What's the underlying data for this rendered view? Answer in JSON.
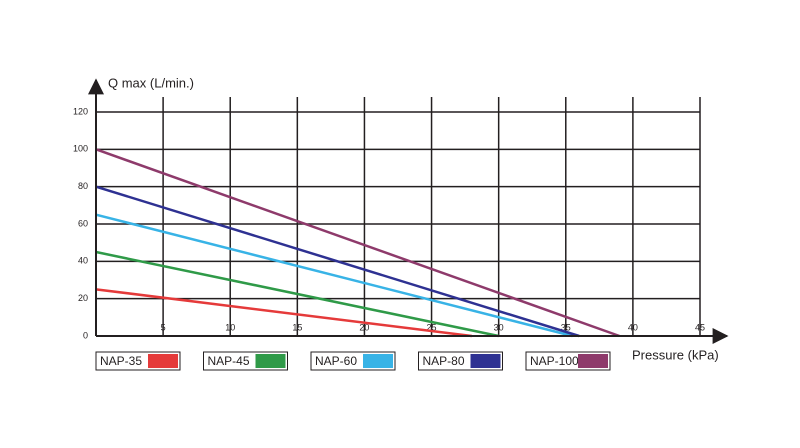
{
  "chart_data": {
    "type": "line",
    "x_label": "Pressure (kPa)",
    "y_label": "Q max (L/min.)",
    "series": [
      {
        "name": "NAP-35",
        "color": "#e53a3a",
        "x": [
          0,
          28
        ],
        "values": [
          25,
          0
        ]
      },
      {
        "name": "NAP-45",
        "color": "#2f9a48",
        "x": [
          0,
          30
        ],
        "values": [
          45,
          0
        ]
      },
      {
        "name": "NAP-60",
        "color": "#38b3e6",
        "x": [
          0,
          35.5
        ],
        "values": [
          65,
          0
        ]
      },
      {
        "name": "NAP-80",
        "color": "#2e3192",
        "x": [
          0,
          36
        ],
        "values": [
          80,
          0
        ]
      },
      {
        "name": "NAP-100",
        "color": "#8e3a6b",
        "x": [
          0,
          39
        ],
        "values": [
          100,
          0
        ]
      }
    ],
    "xlim": [
      0,
      45
    ],
    "ylim": [
      0,
      120
    ],
    "xticks": [
      5,
      10,
      15,
      20,
      25,
      30,
      35,
      40,
      45
    ],
    "yticks": [
      0,
      20,
      40,
      60,
      80,
      100,
      120
    ],
    "grid": true
  }
}
